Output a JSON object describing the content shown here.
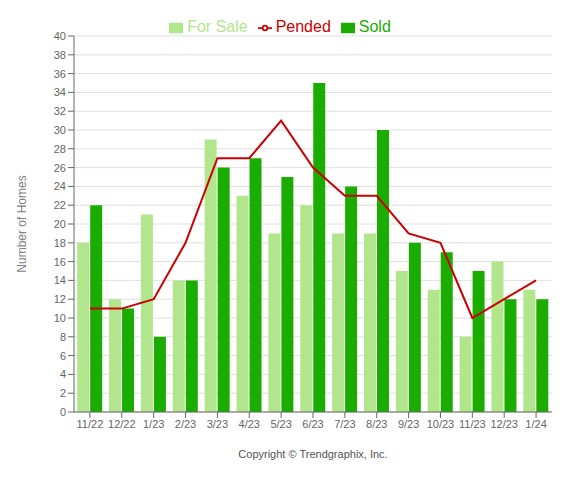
{
  "chart_data": {
    "type": "bar",
    "ylabel": "Number of Homes",
    "xlabel": "Copyright © Trendgraphix, Inc.",
    "categories": [
      "11/22",
      "12/22",
      "1/23",
      "2/23",
      "3/23",
      "4/23",
      "5/23",
      "6/23",
      "7/23",
      "8/23",
      "9/23",
      "10/23",
      "11/23",
      "12/23",
      "1/24"
    ],
    "series": [
      {
        "name": "For Sale",
        "color": "#b2e68d",
        "values": [
          18,
          12,
          21,
          14,
          29,
          23,
          19,
          22,
          19,
          19,
          15,
          13,
          8,
          16,
          13
        ]
      },
      {
        "name": "Sold",
        "color": "#1aad00",
        "values": [
          22,
          11,
          8,
          14,
          26,
          27,
          25,
          35,
          24,
          30,
          18,
          17,
          15,
          12,
          12
        ]
      },
      {
        "name": "Pended",
        "color": "#cc0000",
        "type": "line",
        "values": [
          11,
          11,
          12,
          18,
          27,
          27,
          31,
          26,
          23,
          23,
          19,
          18,
          10,
          12,
          14
        ]
      }
    ],
    "ylim": [
      0,
      40
    ],
    "yticks": [
      0,
      2,
      4,
      6,
      8,
      10,
      12,
      14,
      16,
      18,
      20,
      22,
      24,
      26,
      28,
      30,
      32,
      34,
      36,
      38,
      40
    ],
    "grid": true,
    "legend": "top"
  }
}
